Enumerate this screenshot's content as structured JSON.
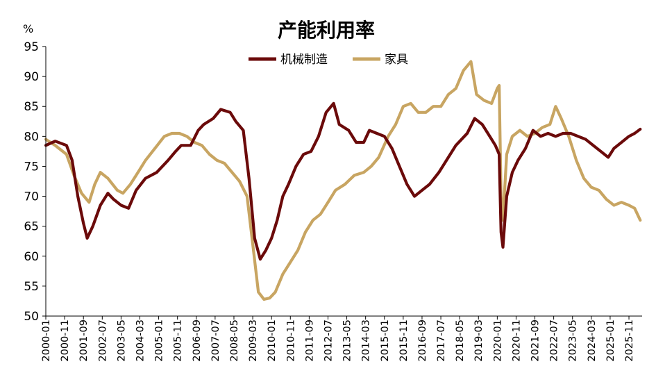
{
  "chart_data": {
    "type": "line",
    "title": "产能利用率",
    "y_unit": "%",
    "ylim": [
      50,
      95
    ],
    "y_ticks": [
      50,
      55,
      60,
      65,
      70,
      75,
      80,
      85,
      90,
      95
    ],
    "x_tick_labels": [
      "2000-01",
      "2000-11",
      "2001-09",
      "2002-07",
      "2003-05",
      "2004-03",
      "2005-01",
      "2005-11",
      "2006-09",
      "2007-07",
      "2008-05",
      "2009-03",
      "2010-01",
      "2010-11",
      "2011-09",
      "2012-07",
      "2013-05",
      "2014-03",
      "2015-01",
      "2015-11",
      "2016-09",
      "2017-07",
      "2018-05",
      "2019-03",
      "2020-01",
      "2020-11",
      "2021-09",
      "2022-07",
      "2023-05",
      "2024-03",
      "2025-01",
      "2025-11"
    ],
    "x_range": [
      "2000-01",
      "2026-06"
    ],
    "legend_position": "top-center",
    "grid": false,
    "series": [
      {
        "name": "机械制造",
        "color": "#6b0a0a",
        "points": [
          [
            "2000-01",
            78.5
          ],
          [
            "2000-06",
            79.2
          ],
          [
            "2000-12",
            78.5
          ],
          [
            "2001-03",
            76
          ],
          [
            "2001-06",
            70
          ],
          [
            "2001-09",
            65.5
          ],
          [
            "2001-11",
            63
          ],
          [
            "2002-02",
            65
          ],
          [
            "2002-06",
            68.5
          ],
          [
            "2002-10",
            70.5
          ],
          [
            "2003-01",
            69.5
          ],
          [
            "2003-05",
            68.5
          ],
          [
            "2003-09",
            68
          ],
          [
            "2004-01",
            71
          ],
          [
            "2004-06",
            73
          ],
          [
            "2004-12",
            74
          ],
          [
            "2005-06",
            76
          ],
          [
            "2005-10",
            77.5
          ],
          [
            "2006-01",
            78.5
          ],
          [
            "2006-06",
            78.5
          ],
          [
            "2006-10",
            81
          ],
          [
            "2007-01",
            82
          ],
          [
            "2007-06",
            83
          ],
          [
            "2007-10",
            84.5
          ],
          [
            "2008-03",
            84
          ],
          [
            "2008-06",
            82.5
          ],
          [
            "2008-10",
            81
          ],
          [
            "2009-01",
            73
          ],
          [
            "2009-04",
            63
          ],
          [
            "2009-07",
            59.5
          ],
          [
            "2009-10",
            61
          ],
          [
            "2010-01",
            63
          ],
          [
            "2010-04",
            66
          ],
          [
            "2010-07",
            70
          ],
          [
            "2010-10",
            72
          ],
          [
            "2011-02",
            75
          ],
          [
            "2011-06",
            77
          ],
          [
            "2011-10",
            77.5
          ],
          [
            "2012-02",
            80
          ],
          [
            "2012-06",
            84
          ],
          [
            "2012-10",
            85.5
          ],
          [
            "2013-01",
            82
          ],
          [
            "2013-06",
            81
          ],
          [
            "2013-10",
            79
          ],
          [
            "2014-02",
            79
          ],
          [
            "2014-05",
            81
          ],
          [
            "2014-09",
            80.5
          ],
          [
            "2015-01",
            80
          ],
          [
            "2015-05",
            78
          ],
          [
            "2015-09",
            75
          ],
          [
            "2016-01",
            72
          ],
          [
            "2016-05",
            70
          ],
          [
            "2016-09",
            71
          ],
          [
            "2017-01",
            72
          ],
          [
            "2017-06",
            74
          ],
          [
            "2017-10",
            76
          ],
          [
            "2018-03",
            78.5
          ],
          [
            "2018-09",
            80.5
          ],
          [
            "2019-01",
            83
          ],
          [
            "2019-05",
            82
          ],
          [
            "2019-09",
            80
          ],
          [
            "2019-12",
            78.5
          ],
          [
            "2020-02",
            77
          ],
          [
            "2020-03",
            64
          ],
          [
            "2020-04",
            61.5
          ],
          [
            "2020-06",
            70
          ],
          [
            "2020-09",
            74
          ],
          [
            "2020-12",
            76
          ],
          [
            "2021-04",
            78
          ],
          [
            "2021-08",
            81
          ],
          [
            "2021-12",
            80
          ],
          [
            "2022-04",
            80.5
          ],
          [
            "2022-08",
            80
          ],
          [
            "2022-12",
            80.5
          ],
          [
            "2023-04",
            80.5
          ],
          [
            "2023-08",
            80
          ],
          [
            "2023-12",
            79.5
          ],
          [
            "2024-04",
            78.5
          ],
          [
            "2024-08",
            77.5
          ],
          [
            "2024-12",
            76.5
          ],
          [
            "2025-03",
            78
          ],
          [
            "2025-07",
            79
          ],
          [
            "2025-11",
            80
          ],
          [
            "2026-02",
            80.5
          ],
          [
            "2026-05",
            81.2
          ]
        ]
      },
      {
        "name": "家具",
        "color": "#c8a562",
        "points": [
          [
            "2000-01",
            79.5
          ],
          [
            "2000-06",
            78.5
          ],
          [
            "2000-12",
            77
          ],
          [
            "2001-04",
            73.5
          ],
          [
            "2001-08",
            70.5
          ],
          [
            "2001-12",
            69
          ],
          [
            "2002-03",
            72
          ],
          [
            "2002-06",
            74
          ],
          [
            "2002-10",
            73
          ],
          [
            "2003-03",
            71
          ],
          [
            "2003-06",
            70.5
          ],
          [
            "2003-10",
            72
          ],
          [
            "2004-02",
            74
          ],
          [
            "2004-06",
            76
          ],
          [
            "2004-11",
            78
          ],
          [
            "2005-04",
            80
          ],
          [
            "2005-08",
            80.5
          ],
          [
            "2005-12",
            80.5
          ],
          [
            "2006-04",
            80
          ],
          [
            "2006-08",
            79
          ],
          [
            "2006-12",
            78.5
          ],
          [
            "2007-04",
            77
          ],
          [
            "2007-08",
            76
          ],
          [
            "2007-12",
            75.5
          ],
          [
            "2008-04",
            74
          ],
          [
            "2008-08",
            72.5
          ],
          [
            "2008-12",
            70
          ],
          [
            "2009-03",
            62
          ],
          [
            "2009-06",
            54
          ],
          [
            "2009-09",
            52.8
          ],
          [
            "2009-12",
            53
          ],
          [
            "2010-03",
            54
          ],
          [
            "2010-07",
            57
          ],
          [
            "2010-11",
            59
          ],
          [
            "2011-03",
            61
          ],
          [
            "2011-07",
            64
          ],
          [
            "2011-11",
            66
          ],
          [
            "2012-03",
            67
          ],
          [
            "2012-07",
            69
          ],
          [
            "2012-11",
            71
          ],
          [
            "2013-04",
            72
          ],
          [
            "2013-09",
            73.5
          ],
          [
            "2014-02",
            74
          ],
          [
            "2014-06",
            75
          ],
          [
            "2014-10",
            76.5
          ],
          [
            "2015-03",
            80
          ],
          [
            "2015-07",
            82
          ],
          [
            "2015-11",
            85
          ],
          [
            "2016-03",
            85.5
          ],
          [
            "2016-07",
            84
          ],
          [
            "2016-11",
            84
          ],
          [
            "2017-03",
            85
          ],
          [
            "2017-07",
            85
          ],
          [
            "2017-11",
            87
          ],
          [
            "2018-03",
            88
          ],
          [
            "2018-07",
            91
          ],
          [
            "2018-11",
            92.5
          ],
          [
            "2019-02",
            87
          ],
          [
            "2019-06",
            86
          ],
          [
            "2019-10",
            85.5
          ],
          [
            "2020-01",
            88
          ],
          [
            "2020-02",
            88.5
          ],
          [
            "2020-03",
            70
          ],
          [
            "2020-04",
            66
          ],
          [
            "2020-06",
            77
          ],
          [
            "2020-09",
            80
          ],
          [
            "2021-01",
            81
          ],
          [
            "2021-05",
            80
          ],
          [
            "2021-09",
            80.5
          ],
          [
            "2022-01",
            81.5
          ],
          [
            "2022-05",
            82
          ],
          [
            "2022-08",
            85
          ],
          [
            "2022-11",
            83
          ],
          [
            "2023-03",
            80
          ],
          [
            "2023-07",
            76
          ],
          [
            "2023-11",
            73
          ],
          [
            "2024-03",
            71.5
          ],
          [
            "2024-07",
            71
          ],
          [
            "2024-11",
            69.5
          ],
          [
            "2025-03",
            68.5
          ],
          [
            "2025-07",
            69
          ],
          [
            "2025-11",
            68.5
          ],
          [
            "2026-02",
            68
          ],
          [
            "2026-05",
            66
          ]
        ]
      }
    ]
  }
}
